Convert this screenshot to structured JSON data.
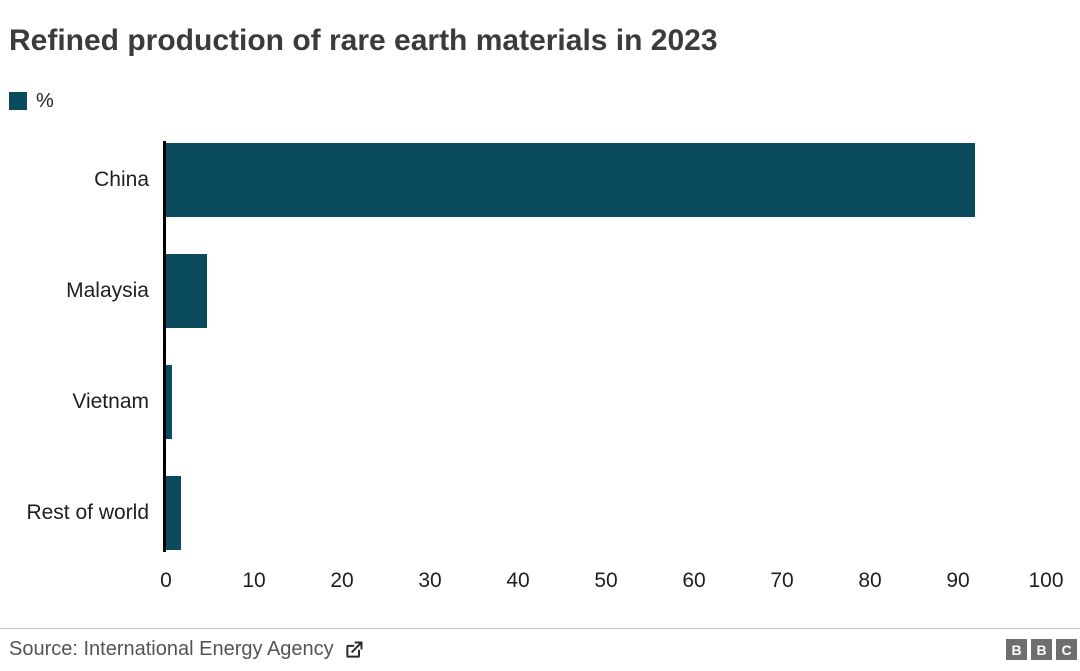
{
  "title": "Refined production of rare earth materials in 2023",
  "legend": {
    "swatch_color": "#0a4c5e",
    "label": "%"
  },
  "chart_data": {
    "type": "bar",
    "orientation": "horizontal",
    "title": "Refined production of rare earth materials in 2023",
    "categories": [
      "China",
      "Malaysia",
      "Vietnam",
      "Rest of world"
    ],
    "values": [
      92,
      5,
      1,
      2
    ],
    "unit": "%",
    "xlabel": "",
    "ylabel": "",
    "xlim": [
      0,
      100
    ],
    "xticks": [
      0,
      10,
      20,
      30,
      40,
      50,
      60,
      70,
      80,
      90,
      100
    ],
    "bar_color": "#0a4c5e",
    "axis_color": "#000000",
    "grid": false,
    "legend_position": "top-left",
    "legend_entries": [
      "%"
    ]
  },
  "footer": {
    "source": "Source: International Energy Agency",
    "logo_letters": [
      "B",
      "B",
      "C"
    ]
  }
}
